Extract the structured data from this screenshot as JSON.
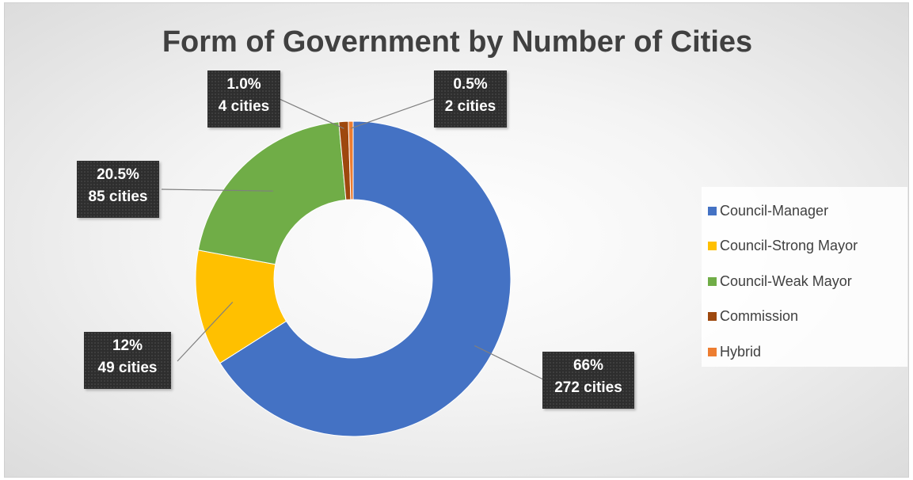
{
  "chart_data": {
    "type": "pie",
    "variant": "donut",
    "title": "Form of Government by Number of Cities",
    "legend_position": "right",
    "series": [
      {
        "name": "Council-Manager",
        "value": 272,
        "percent_label": "66%",
        "count_label": "272 cities",
        "color": "#4472c4"
      },
      {
        "name": "Council-Strong Mayor",
        "value": 49,
        "percent_label": "12%",
        "count_label": "49 cities",
        "color": "#ffc000"
      },
      {
        "name": "Council-Weak Mayor",
        "value": 85,
        "percent_label": "20.5%",
        "count_label": "85 cities",
        "color": "#70ad47"
      },
      {
        "name": "Commission",
        "value": 4,
        "percent_label": "1.0%",
        "count_label": "4 cities",
        "color": "#9e480e"
      },
      {
        "name": "Hybrid",
        "value": 2,
        "percent_label": "0.5%",
        "count_label": "2 cities",
        "color": "#ed7d31"
      }
    ]
  }
}
